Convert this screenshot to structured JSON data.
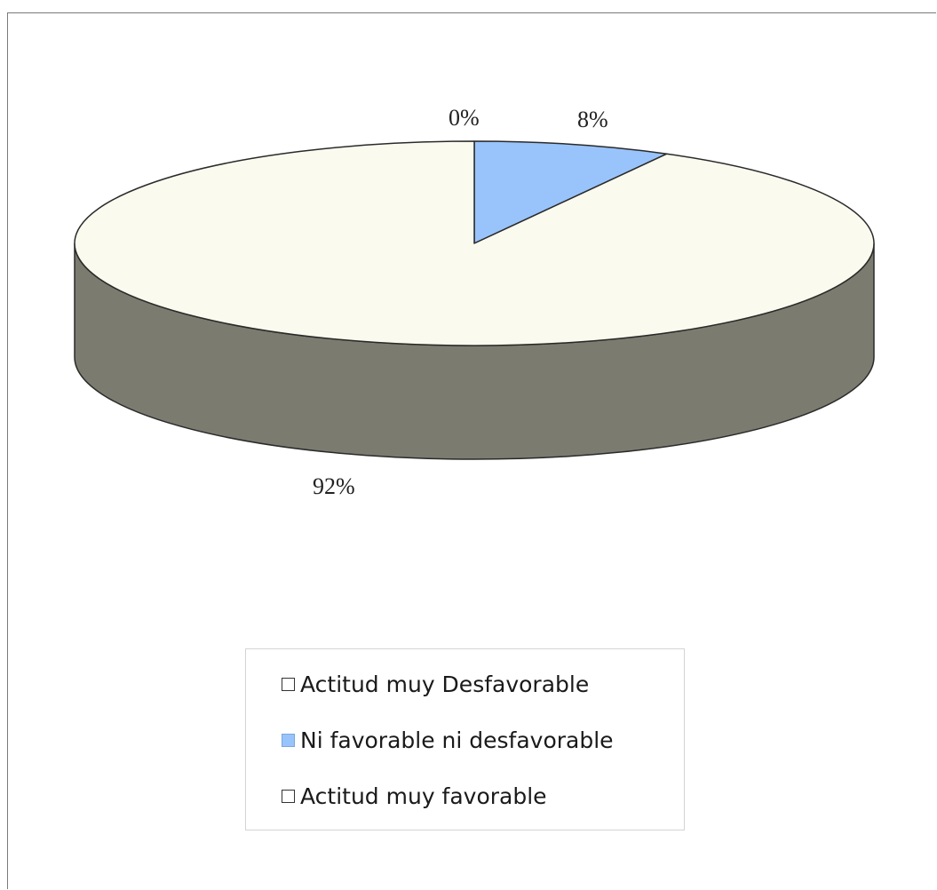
{
  "chart_data": {
    "type": "pie",
    "style": "3d",
    "categories": [
      "Actitud muy Desfavorable",
      "Ni favorable ni desfavorable",
      "Actitud muy favorable"
    ],
    "values": [
      0,
      8,
      92
    ],
    "data_labels": [
      "0%",
      "8%",
      "92%"
    ],
    "colors": [
      "#fbfaef",
      "#99c3fb",
      "#fbfaef"
    ],
    "side_color": "#7b7b6f",
    "legend_position": "bottom"
  }
}
